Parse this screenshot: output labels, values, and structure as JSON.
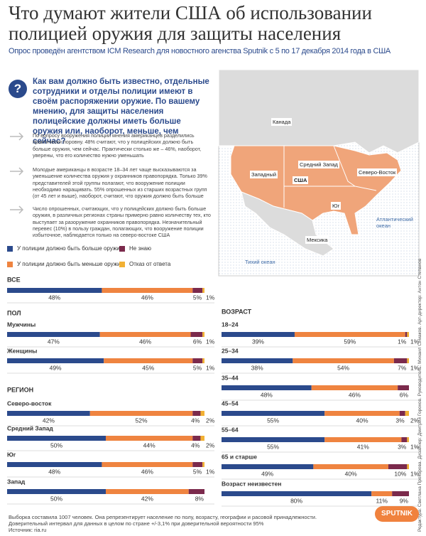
{
  "header": {
    "title_lines": [
      "Что думают жители США об использовании",
      "полицией оружия для защиты населения"
    ],
    "subtitle": "Опрос проведён агентством ICM Research для новостного агенства Sputnik с 5 по 17 декабря 2014 года в США"
  },
  "question": {
    "icon": "?",
    "text": "Как вам должно быть известно, отдельные сотрудники и отделы полиции имеют в своём распоряжении оружие. По вашему мнению, для защиты населения полицейские должны иметь больше оружия или, наоборот, меньше, чем сейчас?"
  },
  "paragraphs": [
    "По вопросу вооружения полиции мнения американцев разделились практически поровну. 48% считают, что у полицейских должно быть больше оружия, чем сейчас. Практически столько же – 46%, наоборот, уверены, что его количество нужно уменьшать",
    "Молодые американцы в возрасте 18–34 лет чаще высказываются за уменьшение количества оружия у охранников правопорядка. Только 39% представителей этой группы полагают, что вооружение полиции необходимо наращивать. 55% опрошенных из старших возрастных групп (от 45 лет и выше), наоборот, считают, что оружия должно быть больше",
    "Число опрошенных, считающих, что у полицейских должно быть больше оружия, в различных регионах страны примерно равно количеству тех, кто выступает за разоружение охранников правопорядка. Незначительный перевес (10%) в пользу граждан, полагающих, что вооружение полиции избыточное, наблюдается только на северо-востоке США"
  ],
  "map": {
    "labels": [
      "Канада",
      "Средний Запад",
      "Западный",
      "США",
      "Северо-Восток",
      "Юг",
      "Мексика",
      "Атлантический океан",
      "Тихий океан"
    ]
  },
  "chart_data": {
    "type": "stacked_bar",
    "xlim": [
      0,
      100
    ],
    "section_titles": [
      "ВСЕ",
      "ПОЛ",
      "РЕГИОН",
      "ВОЗРАСТ"
    ],
    "categories": [
      null,
      "Мужчины",
      "Женщины",
      "Северо-восток",
      "Средний Запад",
      "Юг",
      "Запад",
      "18–24",
      "25–34",
      "35–44",
      "45–54",
      "55–64",
      "65 и старше",
      "Возраст неизвестен"
    ],
    "series": [
      {
        "name": "У полиции должно быть больше оружия",
        "color": "#2b4a8c",
        "values": [
          48,
          47,
          49,
          42,
          50,
          48,
          50,
          39,
          38,
          48,
          55,
          55,
          49,
          80
        ],
        "value_labels": [
          "48%",
          "47%",
          "49%",
          "42%",
          "50%",
          "48%",
          "50%",
          "39%",
          "38%",
          "48%",
          "55%",
          "55%",
          "49%",
          "80%"
        ]
      },
      {
        "name": "У полиции должно быть меньше оружия",
        "color": "#ef8440",
        "values": [
          46,
          46,
          45,
          52,
          44,
          46,
          42,
          59,
          54,
          46,
          40,
          41,
          40,
          11
        ],
        "value_labels": [
          "46%",
          "46%",
          "45%",
          "52%",
          "44%",
          "46%",
          "42%",
          "59%",
          "54%",
          "46%",
          "40%",
          "41%",
          "40%",
          "11%"
        ]
      },
      {
        "name": "Не знаю",
        "color": "#7b2a4c",
        "values": [
          5,
          6,
          5,
          4,
          4,
          5,
          8,
          1,
          7,
          6,
          3,
          3,
          10,
          9
        ],
        "value_labels": [
          "5%",
          "6%",
          "5%",
          "4%",
          "4%",
          "5%",
          "8%",
          "1%",
          "7%",
          "6%",
          "3%",
          "3%",
          "10%",
          "9%"
        ]
      },
      {
        "name": "Отказ от ответа",
        "color": "#f2b134",
        "values": [
          1,
          1,
          1,
          2,
          2,
          1,
          null,
          1,
          1,
          null,
          2,
          1,
          1,
          null
        ],
        "value_labels": [
          "1%",
          "1%",
          "1%",
          "2%",
          "2%",
          "1%",
          null,
          "1%",
          "1%",
          null,
          "2%",
          "1%",
          "1%",
          null
        ]
      }
    ]
  },
  "footer": {
    "notes": [
      "Выборка составила 1007 человек. Она репрезентирует население по полу, возрасту, географии и расовой принадлежности.",
      "Доверительный интервал для данных в целом по стране +/-3,1% при доверительной вероятности 95%",
      "Источник: ria.ru"
    ],
    "credits": "Редактура: Светлана Прохорова. Дизайнер: Дмитрий Горохов. Руководитель: Михаил Симаков. Арт-директор: Антон Степанов",
    "logo": "SPUTNIK"
  }
}
